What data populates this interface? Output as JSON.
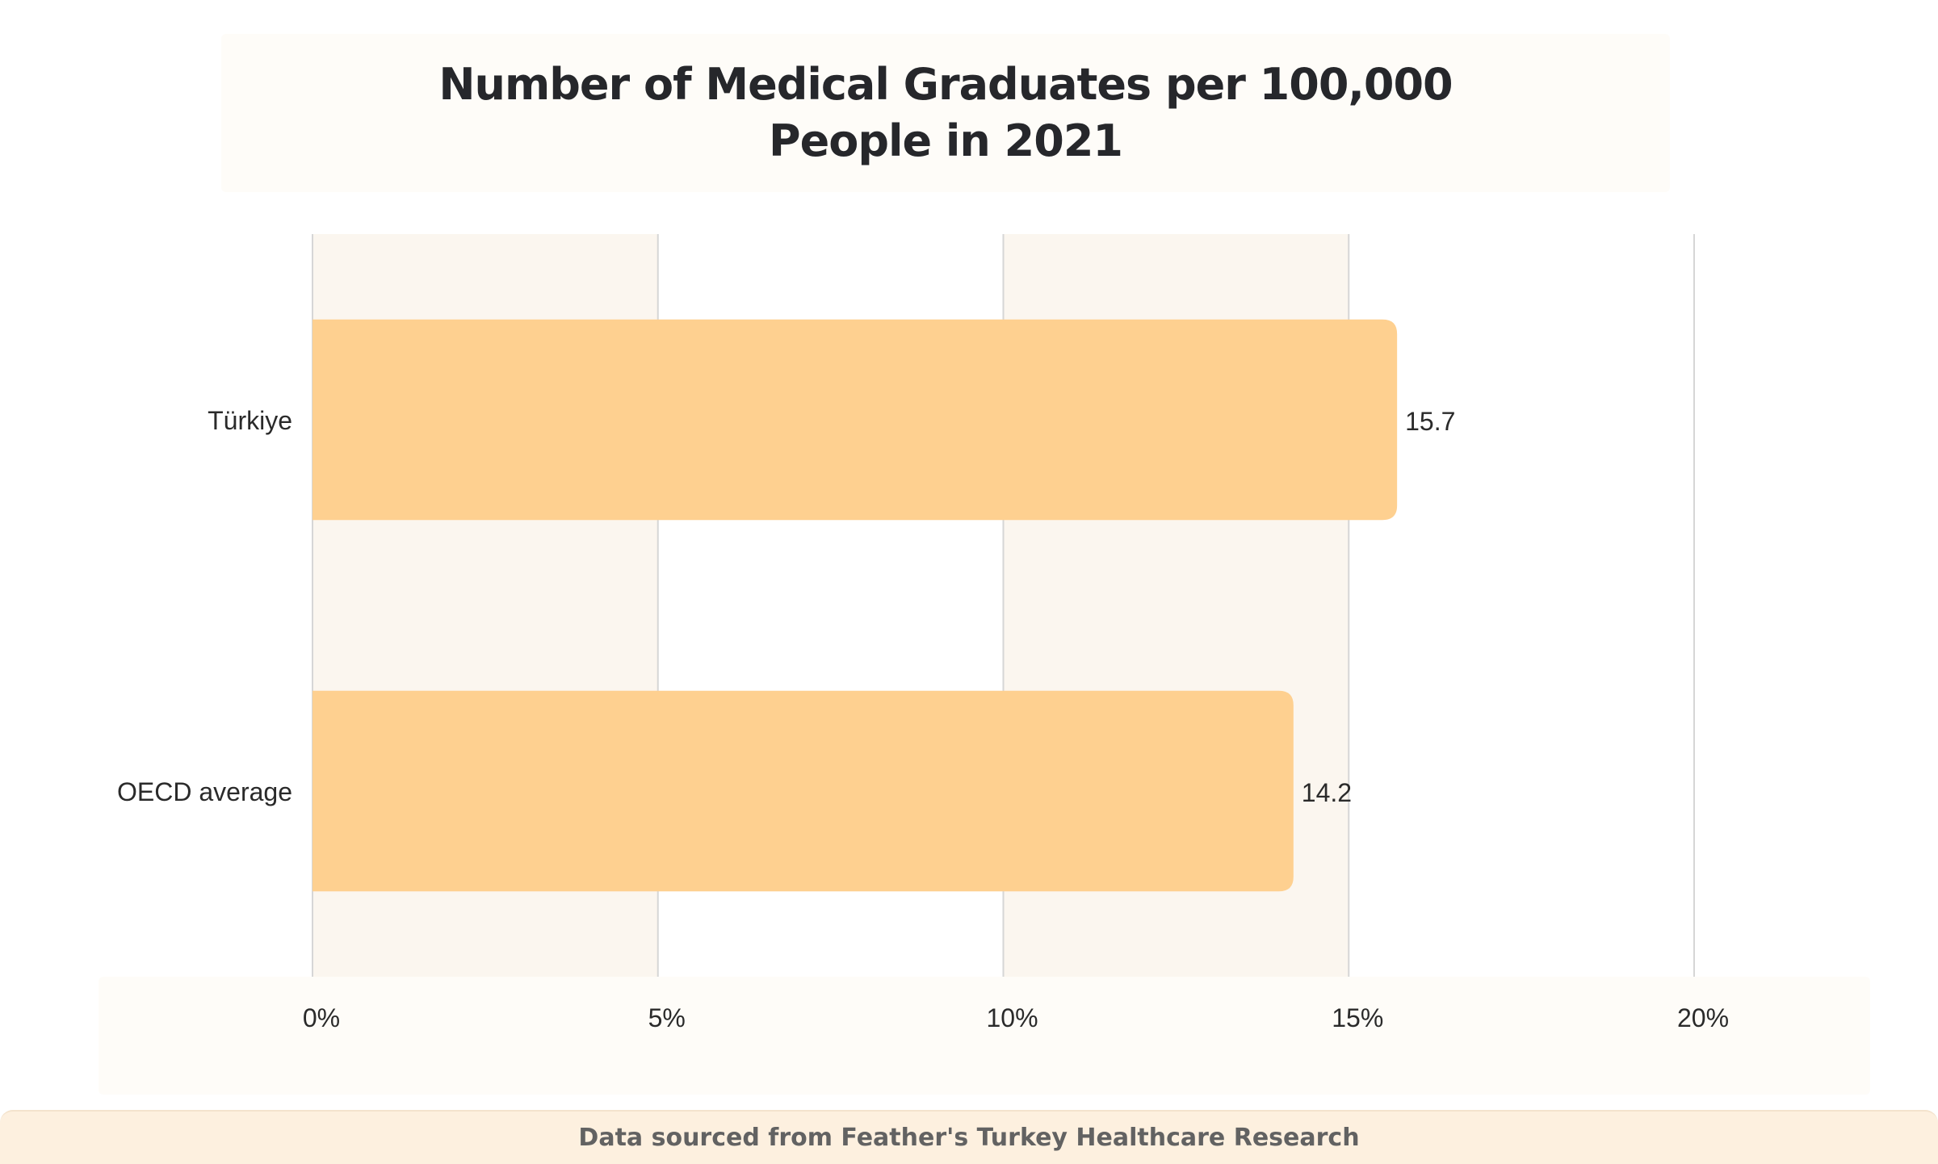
{
  "chart_data": {
    "type": "bar",
    "orientation": "horizontal",
    "title_lines": [
      "Number of Medical Graduates per 100,000",
      "People in 2021"
    ],
    "categories": [
      "Türkiye",
      "OECD average"
    ],
    "values": [
      15.7,
      14.2
    ],
    "value_labels": [
      "15.7",
      "14.2"
    ],
    "xlim": [
      0,
      20
    ],
    "x_ticks": [
      0,
      5,
      10,
      15,
      20
    ],
    "x_tick_labels": [
      "0%",
      "5%",
      "10%",
      "15%",
      "20%"
    ],
    "xlabel": "",
    "ylabel": "",
    "grid": true,
    "bar_color": "#fed090",
    "band_color": "#fbf6ef",
    "gridline_color": "#d6d6d6"
  },
  "footer": {
    "source_text": "Data sourced from Feather's Turkey Healthcare Research"
  }
}
